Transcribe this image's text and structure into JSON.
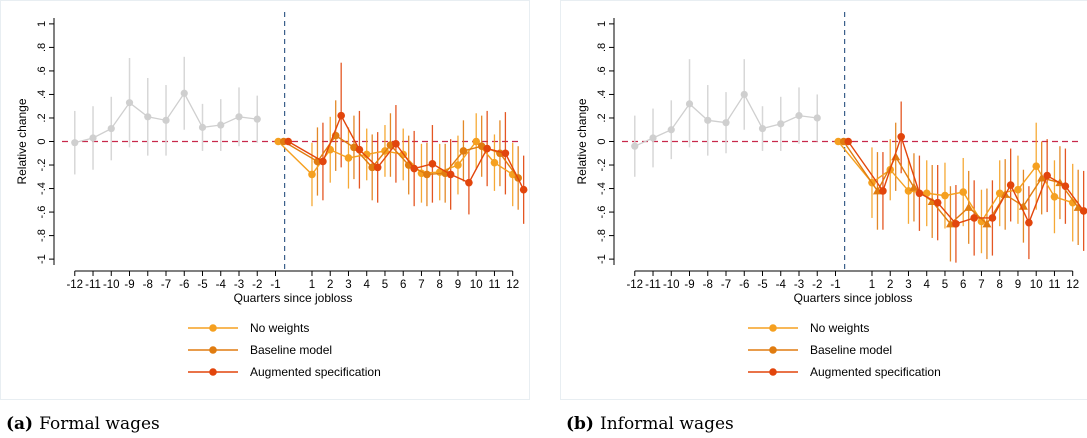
{
  "colors": {
    "pre": "#cfcfcf",
    "pre_ci": "#d7d7d7",
    "no_weights": "#f5a020",
    "baseline": "#e07c10",
    "augmented": "#e2450c",
    "zero_line": "#c8284a",
    "vline": "#3a5f8a",
    "frame": "#e8eef2"
  },
  "panels": [
    {
      "caption_label": "(a)",
      "caption_text": "Formal wages",
      "chart_data": {
        "type": "line",
        "xlabel": "Quarters since jobloss",
        "ylabel": "Relative change",
        "xlim": [
          -12.7,
          12.4
        ],
        "ylim": [
          -1.05,
          1.05
        ],
        "xticks": [
          -12,
          -11,
          -10,
          -9,
          -8,
          -7,
          -6,
          -5,
          -4,
          -3,
          -2,
          -1,
          1,
          2,
          3,
          4,
          5,
          6,
          7,
          8,
          9,
          10,
          11,
          12
        ],
        "yticks": [
          -1,
          -0.8,
          -0.6,
          -0.4,
          -0.2,
          0,
          0.2,
          0.4,
          0.6,
          0.8,
          1
        ],
        "ytick_labels": [
          "-1",
          "-.8",
          "-.6",
          "-.4",
          "-.2",
          "0",
          ".2",
          ".4",
          ".6",
          ".8",
          "1"
        ],
        "vline_x": -0.5,
        "zero_line": 0,
        "legend": [
          "No weights",
          "Baseline model",
          "Augmented specification"
        ],
        "pre_period": {
          "x": [
            -12,
            -11,
            -10,
            -9,
            -8,
            -7,
            -6,
            -5,
            -4,
            -3,
            -2
          ],
          "y": [
            -0.01,
            0.03,
            0.11,
            0.33,
            0.21,
            0.18,
            0.41,
            0.12,
            0.14,
            0.21,
            0.19
          ],
          "lo": [
            -0.28,
            -0.24,
            -0.16,
            -0.05,
            -0.12,
            -0.12,
            0.1,
            -0.08,
            -0.08,
            -0.04,
            -0.01
          ],
          "hi": [
            0.26,
            0.3,
            0.38,
            0.71,
            0.54,
            0.48,
            0.72,
            0.32,
            0.36,
            0.46,
            0.39
          ]
        },
        "series": [
          {
            "name": "No weights",
            "x": [
              -0.85,
              1,
              2,
              3,
              4,
              5,
              6,
              7,
              8,
              9,
              10,
              11,
              12
            ],
            "y": [
              0,
              -0.28,
              -0.07,
              -0.14,
              -0.11,
              -0.08,
              -0.11,
              -0.27,
              -0.26,
              -0.2,
              0,
              -0.18,
              -0.28
            ],
            "lo": [
              0,
              -0.55,
              -0.35,
              -0.4,
              -0.33,
              -0.3,
              -0.33,
              -0.52,
              -0.5,
              -0.45,
              -0.24,
              -0.42,
              -0.55
            ],
            "hi": [
              0,
              -0.01,
              0.21,
              0.12,
              0.11,
              0.14,
              0.11,
              -0.02,
              -0.02,
              0.05,
              0.24,
              0.06,
              -0.01
            ]
          },
          {
            "name": "Baseline model",
            "x": [
              -0.55,
              1.3,
              2.3,
              3.3,
              4.3,
              5.3,
              6.3,
              7.3,
              8.3,
              9.3,
              10.3,
              11.3,
              12.3
            ],
            "y": [
              0,
              -0.17,
              0.05,
              -0.05,
              -0.22,
              -0.03,
              -0.2,
              -0.28,
              -0.27,
              -0.08,
              -0.04,
              -0.1,
              -0.31
            ],
            "lo": [
              0,
              -0.46,
              -0.25,
              -0.32,
              -0.5,
              -0.3,
              -0.45,
              -0.55,
              -0.52,
              -0.34,
              -0.3,
              -0.38,
              -0.58
            ],
            "hi": [
              0,
              0.12,
              0.35,
              0.22,
              0.06,
              0.24,
              0.05,
              -0.01,
              -0.02,
              0.18,
              0.22,
              0.18,
              -0.04
            ]
          },
          {
            "name": "Augmented specification",
            "x": [
              -0.3,
              1.6,
              2.6,
              3.6,
              4.6,
              5.6,
              6.6,
              7.6,
              8.6,
              9.6,
              10.6,
              11.6,
              12.6
            ],
            "y": [
              0,
              -0.17,
              0.22,
              -0.07,
              -0.22,
              -0.02,
              -0.23,
              -0.19,
              -0.28,
              -0.35,
              -0.06,
              -0.1,
              -0.41
            ],
            "lo": [
              0,
              -0.5,
              -0.22,
              -0.4,
              -0.52,
              -0.35,
              -0.55,
              -0.52,
              -0.58,
              -0.62,
              -0.38,
              -0.45,
              -0.7
            ],
            "hi": [
              0,
              0.16,
              0.67,
              0.26,
              0.08,
              0.31,
              0.09,
              0.14,
              0.02,
              -0.08,
              0.26,
              0.25,
              -0.12
            ]
          }
        ]
      }
    },
    {
      "caption_label": "(b)",
      "caption_text": "Informal wages",
      "chart_data": {
        "type": "line",
        "xlabel": "Quarters since jobloss",
        "ylabel": "Relative change",
        "xlim": [
          -12.7,
          12.4
        ],
        "ylim": [
          -1.05,
          1.05
        ],
        "xticks": [
          -12,
          -11,
          -10,
          -9,
          -8,
          -7,
          -6,
          -5,
          -4,
          -3,
          -2,
          -1,
          1,
          2,
          3,
          4,
          5,
          6,
          7,
          8,
          9,
          10,
          11,
          12
        ],
        "yticks": [
          -1,
          -0.8,
          -0.6,
          -0.4,
          -0.2,
          0,
          0.2,
          0.4,
          0.6,
          0.8,
          1
        ],
        "ytick_labels": [
          "-1",
          "-.8",
          "-.6",
          "-.4",
          "-.2",
          "0",
          ".2",
          ".4",
          ".6",
          ".8",
          "1"
        ],
        "vline_x": -0.5,
        "zero_line": 0,
        "legend": [
          "No weights",
          "Baseline model",
          "Augmented specification"
        ],
        "pre_period": {
          "x": [
            -12,
            -11,
            -10,
            -9,
            -8,
            -7,
            -6,
            -5,
            -4,
            -3,
            -2
          ],
          "y": [
            -0.04,
            0.03,
            0.1,
            0.32,
            0.18,
            0.16,
            0.4,
            0.11,
            0.15,
            0.22,
            0.2
          ],
          "lo": [
            -0.3,
            -0.22,
            -0.15,
            -0.05,
            -0.12,
            -0.1,
            0.1,
            -0.08,
            -0.08,
            -0.02,
            0
          ],
          "hi": [
            0.22,
            0.28,
            0.35,
            0.7,
            0.48,
            0.42,
            0.7,
            0.3,
            0.38,
            0.46,
            0.4
          ]
        },
        "series": [
          {
            "name": "No weights",
            "x": [
              -0.85,
              1,
              2,
              3,
              4,
              5,
              6,
              7,
              8,
              9,
              10,
              11,
              12
            ],
            "y": [
              0,
              -0.35,
              -0.24,
              -0.42,
              -0.44,
              -0.46,
              -0.43,
              -0.68,
              -0.44,
              -0.41,
              -0.21,
              -0.47,
              -0.52
            ],
            "lo": [
              0,
              -0.65,
              -0.5,
              -0.7,
              -0.72,
              -0.74,
              -0.72,
              -0.95,
              -0.72,
              -0.7,
              -0.58,
              -0.78,
              -0.85
            ],
            "hi": [
              0,
              -0.05,
              0.02,
              -0.14,
              -0.16,
              -0.18,
              -0.14,
              -0.41,
              -0.16,
              -0.12,
              0.16,
              -0.16,
              -0.19
            ]
          },
          {
            "name": "Baseline model",
            "x": [
              -0.55,
              1.3,
              2.3,
              3.3,
              4.3,
              5.3,
              6.3,
              7.3,
              8.3,
              9.3,
              10.3,
              11.3,
              12.3
            ],
            "y": [
              0,
              -0.42,
              -0.13,
              -0.39,
              -0.51,
              -0.7,
              -0.56,
              -0.7,
              -0.45,
              -0.55,
              -0.31,
              -0.35,
              -0.56
            ],
            "lo": [
              0,
              -0.75,
              -0.42,
              -0.68,
              -0.82,
              -1.02,
              -0.87,
              -1.0,
              -0.75,
              -0.86,
              -0.62,
              -0.66,
              -0.88
            ],
            "hi": [
              0,
              -0.09,
              0.16,
              -0.1,
              -0.2,
              -0.38,
              -0.25,
              -0.4,
              -0.15,
              -0.24,
              0,
              -0.04,
              -0.24
            ]
          },
          {
            "name": "Augmented specification",
            "x": [
              -0.3,
              1.6,
              2.6,
              3.6,
              4.6,
              5.6,
              6.6,
              7.6,
              8.6,
              9.6,
              10.6,
              11.6,
              12.6
            ],
            "y": [
              0,
              -0.42,
              0.04,
              -0.44,
              -0.52,
              -0.7,
              -0.65,
              -0.65,
              -0.37,
              -0.69,
              -0.29,
              -0.38,
              -0.59
            ],
            "lo": [
              0,
              -0.75,
              -0.27,
              -0.76,
              -0.84,
              -1.03,
              -0.97,
              -0.97,
              -0.68,
              -1.0,
              -0.6,
              -0.7,
              -0.93
            ],
            "hi": [
              0,
              -0.09,
              0.34,
              -0.12,
              -0.2,
              -0.37,
              -0.33,
              -0.33,
              -0.06,
              -0.38,
              0.02,
              -0.06,
              -0.25
            ]
          }
        ]
      }
    }
  ]
}
